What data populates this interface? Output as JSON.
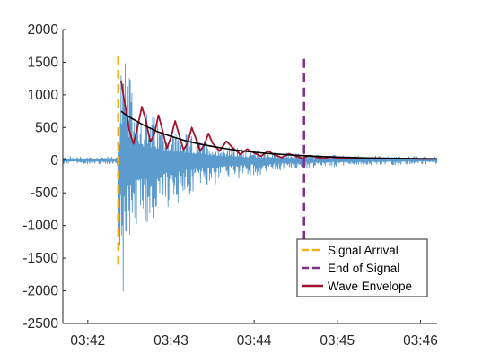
{
  "chart_data": {
    "type": "line",
    "title": "",
    "xlabel": "",
    "ylabel": "",
    "xlim": [
      "03:41:42",
      "03:46:12"
    ],
    "ylim": [
      -2500,
      2000
    ],
    "x_ticks": [
      "03:42",
      "03:43",
      "03:44",
      "03:45",
      "03:46"
    ],
    "y_ticks": [
      2000,
      1500,
      1000,
      500,
      0,
      -500,
      -1000,
      -1500,
      -2000,
      -2500
    ],
    "grid": false,
    "legend": {
      "placement": "bottom-right",
      "entries": [
        {
          "label": "Signal Arrival",
          "color": "#EDB120",
          "style": "dashed"
        },
        {
          "label": "End of Signal",
          "color": "#7E2F8E",
          "style": "dashed"
        },
        {
          "label": "Wave Envelope",
          "color": "#A2142F",
          "style": "solid"
        }
      ]
    },
    "series": [
      {
        "name": "Signal Arrival",
        "kind": "vertical-line",
        "color": "#EDB120",
        "x": "03:42:22",
        "y_range": [
          -1600,
          1600
        ]
      },
      {
        "name": "End of Signal",
        "kind": "vertical-line",
        "color": "#7E2F8E",
        "x": "03:44:36",
        "y_range": [
          -1600,
          1550
        ]
      },
      {
        "name": "Wave Envelope",
        "kind": "line",
        "color": "#A2142F",
        "x": [
          "03:42:24",
          "03:42:26",
          "03:42:28",
          "03:42:30",
          "03:42:33",
          "03:42:36",
          "03:42:39",
          "03:42:42",
          "03:42:45",
          "03:42:48",
          "03:42:51",
          "03:42:54",
          "03:42:57",
          "03:43:00",
          "03:43:03",
          "03:43:06",
          "03:43:09",
          "03:43:12",
          "03:43:15",
          "03:43:18",
          "03:43:21",
          "03:43:24",
          "03:43:27",
          "03:43:30",
          "03:43:35",
          "03:43:40",
          "03:43:45",
          "03:43:50",
          "03:43:55",
          "03:44:00",
          "03:44:05",
          "03:44:10",
          "03:44:15",
          "03:44:20",
          "03:44:25",
          "03:44:30",
          "03:44:35",
          "03:44:40",
          "03:44:45",
          "03:44:50",
          "03:44:55",
          "03:45:00",
          "03:45:10",
          "03:45:20",
          "03:45:30",
          "03:45:40",
          "03:45:50",
          "03:46:00",
          "03:46:10"
        ],
        "y": [
          1220,
          950,
          720,
          450,
          250,
          520,
          820,
          600,
          280,
          400,
          690,
          450,
          180,
          350,
          600,
          380,
          160,
          260,
          500,
          330,
          140,
          230,
          410,
          260,
          140,
          290,
          180,
          90,
          170,
          110,
          60,
          140,
          80,
          40,
          100,
          60,
          30,
          70,
          45,
          25,
          50,
          35,
          35,
          30,
          30,
          25,
          25,
          20,
          20
        ]
      },
      {
        "name": "",
        "kind": "line",
        "color": "#000000",
        "x": [
          "03:42:24",
          "03:42:30",
          "03:42:40",
          "03:42:50",
          "03:43:00",
          "03:43:10",
          "03:43:20",
          "03:43:30",
          "03:43:40",
          "03:43:50",
          "03:44:00",
          "03:44:10",
          "03:44:20",
          "03:44:30",
          "03:44:40",
          "03:44:50",
          "03:45:00",
          "03:45:15",
          "03:45:30",
          "03:45:45",
          "03:46:00",
          "03:46:12"
        ],
        "y": [
          750,
          660,
          540,
          440,
          365,
          300,
          250,
          210,
          175,
          145,
          122,
          103,
          88,
          75,
          64,
          55,
          47,
          38,
          31,
          26,
          22,
          20
        ]
      },
      {
        "name": "",
        "kind": "waveform",
        "color": "#4A90C8",
        "x": [
          "03:41:42",
          "03:42:21",
          "03:42:22",
          "03:42:23",
          "03:42:24",
          "03:42:26",
          "03:42:28",
          "03:42:30",
          "03:42:34",
          "03:42:40",
          "03:42:50",
          "03:43:00",
          "03:43:15",
          "03:43:30",
          "03:43:45",
          "03:44:00",
          "03:44:20",
          "03:44:40",
          "03:45:00",
          "03:45:30",
          "03:46:00",
          "03:46:12"
        ],
        "y_max": [
          60,
          60,
          300,
          1000,
          1750,
          1600,
          1500,
          1300,
          1050,
          850,
          650,
          500,
          380,
          280,
          220,
          160,
          120,
          100,
          80,
          70,
          60,
          60
        ],
        "y_min": [
          -60,
          -60,
          -900,
          -1800,
          -2150,
          -2000,
          -1700,
          -1500,
          -1250,
          -1050,
          -900,
          -700,
          -550,
          -420,
          -320,
          -250,
          -170,
          -130,
          -100,
          -80,
          -65,
          -60
        ]
      }
    ]
  }
}
